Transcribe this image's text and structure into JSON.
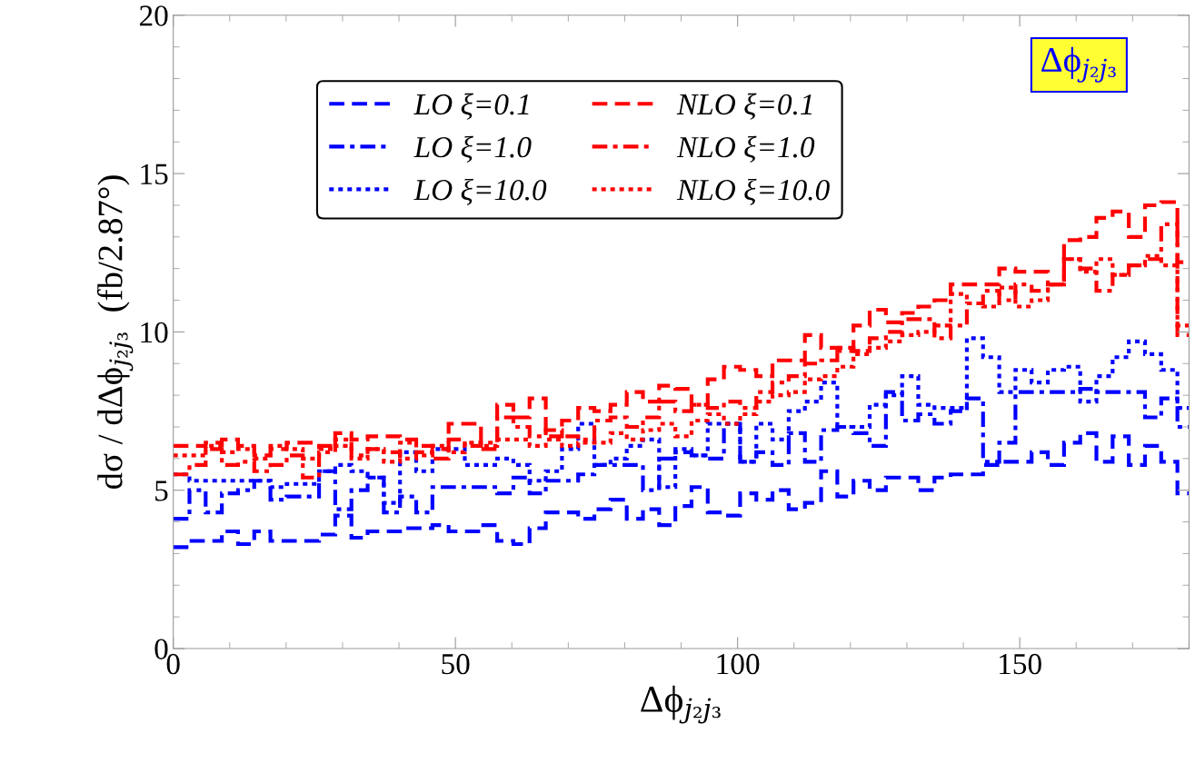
{
  "chart_data": {
    "type": "histogram",
    "xlabel": "Δϕ$_{j₂j₃}$",
    "ylabel": "dσ / dΔϕ$_{j₂j₃}$  (fb/2.87°)",
    "annotations": [
      "Δϕ$_{j₂j₃}$"
    ],
    "bins": [
      0,
      2.87,
      5.74,
      8.61,
      11.48,
      14.35,
      17.22,
      20.09,
      22.96,
      25.83,
      28.7,
      31.57,
      34.44,
      37.31,
      40.18,
      43.05,
      45.92,
      48.79,
      51.66,
      54.53,
      57.4,
      60.27,
      63.14,
      66.01,
      68.88,
      71.75,
      74.62,
      77.49,
      80.36,
      83.23,
      86.1,
      88.97,
      91.84,
      94.71,
      97.58,
      100.45,
      103.32,
      106.19,
      109.06,
      111.93,
      114.8,
      117.67,
      120.54,
      123.41,
      126.28,
      129.15,
      132.02,
      134.89,
      137.76,
      140.63,
      143.5,
      146.37,
      149.24,
      152.11,
      154.98,
      157.85,
      160.72,
      163.59,
      166.46,
      169.33,
      172.2,
      175.07,
      177.94,
      180
    ],
    "series": [
      {
        "name": "LO ξ=0.1",
        "color": "#0000ff",
        "line_style": "dashed",
        "values": [
          3.2,
          3.4,
          3.4,
          3.7,
          3.3,
          3.7,
          3.4,
          3.4,
          3.4,
          3.6,
          4.2,
          3.5,
          3.7,
          3.7,
          3.8,
          3.8,
          3.9,
          3.7,
          3.7,
          3.9,
          3.4,
          3.3,
          3.8,
          4.3,
          4.3,
          4.1,
          4.4,
          4.7,
          4.1,
          4.4,
          3.9,
          4.5,
          5.1,
          4.3,
          4.2,
          4.9,
          4.7,
          5.0,
          4.4,
          4.6,
          5.6,
          4.8,
          5.3,
          5.0,
          5.4,
          5.4,
          5.0,
          5.4,
          5.5,
          5.5,
          5.8,
          5.9,
          5.9,
          6.2,
          5.8,
          6.5,
          6.8,
          5.9,
          6.7,
          5.8,
          6.4,
          5.9,
          4.9
        ]
      },
      {
        "name": "LO ξ=1.0",
        "color": "#0000fe",
        "line_style": "dashdot",
        "values": [
          4.1,
          5.0,
          4.3,
          4.9,
          5.0,
          5.3,
          4.7,
          4.8,
          4.8,
          5.6,
          4.4,
          5.0,
          5.4,
          4.3,
          4.8,
          4.3,
          5.1,
          5.1,
          5.1,
          5.1,
          4.9,
          5.4,
          4.9,
          5.3,
          5.3,
          5.5,
          5.8,
          5.8,
          5.8,
          5.0,
          6.0,
          6.2,
          6.1,
          6.0,
          7.1,
          5.9,
          6.2,
          5.8,
          6.8,
          5.9,
          6.9,
          7.0,
          6.8,
          6.4,
          8.1,
          7.2,
          7.4,
          7.1,
          7.5,
          7.9,
          5.9,
          6.5,
          8.1,
          8.1,
          8.1,
          8.1,
          8.2,
          8.1,
          8.1,
          8.1,
          7.3,
          7.9,
          7.0
        ]
      },
      {
        "name": "LO ξ=10.0",
        "color": "#0202fd",
        "line_style": "dotted",
        "values": [
          5.5,
          5.3,
          5.3,
          5.3,
          5.3,
          5.3,
          5.1,
          5.2,
          5.2,
          5.6,
          5.8,
          5.6,
          5.4,
          4.6,
          6.2,
          5.6,
          6.3,
          6.3,
          5.8,
          5.8,
          6.0,
          5.8,
          5.3,
          5.6,
          6.3,
          7.1,
          5.8,
          6.0,
          6.4,
          6.6,
          5.1,
          6.3,
          6.1,
          7.1,
          7.1,
          5.9,
          7.1,
          6.6,
          7.5,
          7.8,
          8.4,
          7.0,
          7.0,
          7.7,
          8.0,
          8.6,
          7.7,
          7.6,
          7.6,
          9.8,
          9.2,
          8.1,
          8.8,
          8.4,
          8.8,
          8.9,
          7.8,
          8.6,
          9.2,
          9.7,
          9.3,
          8.8,
          7.6
        ]
      },
      {
        "name": "NLO ξ=0.1",
        "color": "#ff0000",
        "line_style": "dashed",
        "values": [
          6.4,
          6.4,
          6.5,
          6.6,
          6.4,
          6.1,
          6.3,
          6.5,
          6.5,
          6.4,
          6.8,
          6.6,
          6.7,
          6.7,
          6.6,
          6.4,
          6.3,
          7.1,
          7.1,
          6.3,
          7.7,
          7.3,
          7.9,
          6.7,
          7.2,
          7.6,
          7.5,
          7.7,
          8.1,
          7.8,
          8.3,
          8.2,
          7.7,
          8.5,
          8.9,
          8.8,
          8.6,
          9.1,
          9.1,
          9.9,
          9.5,
          9.4,
          10.2,
          10.7,
          10.3,
          10.6,
          10.8,
          11.0,
          11.5,
          11.5,
          11.5,
          12.0,
          11.9,
          11.9,
          11.5,
          12.9,
          13.0,
          13.6,
          13.8,
          13.0,
          14.0,
          14.1,
          9.9
        ]
      },
      {
        "name": "NLO ξ=1.0",
        "color": "#fe0000",
        "line_style": "dashdot",
        "values": [
          5.5,
          5.8,
          6.3,
          5.8,
          5.9,
          5.6,
          5.8,
          6.1,
          5.4,
          6.2,
          6.6,
          6.1,
          6.3,
          6.2,
          6.0,
          6.2,
          6.0,
          6.6,
          6.4,
          6.5,
          7.3,
          7.0,
          6.7,
          6.9,
          6.7,
          6.6,
          7.2,
          7.3,
          7.0,
          7.3,
          7.8,
          7.5,
          7.7,
          7.6,
          7.8,
          7.6,
          8.1,
          8.4,
          8.6,
          9.0,
          9.1,
          9.5,
          9.4,
          9.8,
          10.0,
          10.4,
          10.4,
          9.8,
          10.2,
          10.9,
          11.3,
          11.0,
          11.5,
          11.3,
          11.5,
          12.3,
          12.0,
          11.3,
          11.8,
          12.1,
          12.3,
          13.4,
          12.2
        ]
      },
      {
        "name": "NLO ξ=10.0",
        "color": "#fd0202",
        "line_style": "dotted",
        "values": [
          6.1,
          6.1,
          6.4,
          6.2,
          6.3,
          6.0,
          6.4,
          6.3,
          6.0,
          6.3,
          6.4,
          6.0,
          6.3,
          5.9,
          6.5,
          6.1,
          6.4,
          6.2,
          6.5,
          6.4,
          6.6,
          6.6,
          6.4,
          6.6,
          6.4,
          6.5,
          6.5,
          6.8,
          6.6,
          6.9,
          7.1,
          6.7,
          7.2,
          7.4,
          7.1,
          7.4,
          7.8,
          8.0,
          8.1,
          8.5,
          8.6,
          8.9,
          9.3,
          9.5,
          9.7,
          9.9,
          10.0,
          10.2,
          11.2,
          10.9,
          10.8,
          11.4,
          10.8,
          11.0,
          11.5,
          12.3,
          11.9,
          12.3,
          11.8,
          12.1,
          12.4,
          12.1,
          10.2
        ]
      }
    ],
    "xlim": [
      0,
      180
    ],
    "ylim": [
      0,
      20
    ],
    "xticks": [
      0,
      50,
      100,
      150
    ],
    "yticks": [
      0,
      5,
      10,
      15,
      20
    ],
    "legend": "top"
  }
}
